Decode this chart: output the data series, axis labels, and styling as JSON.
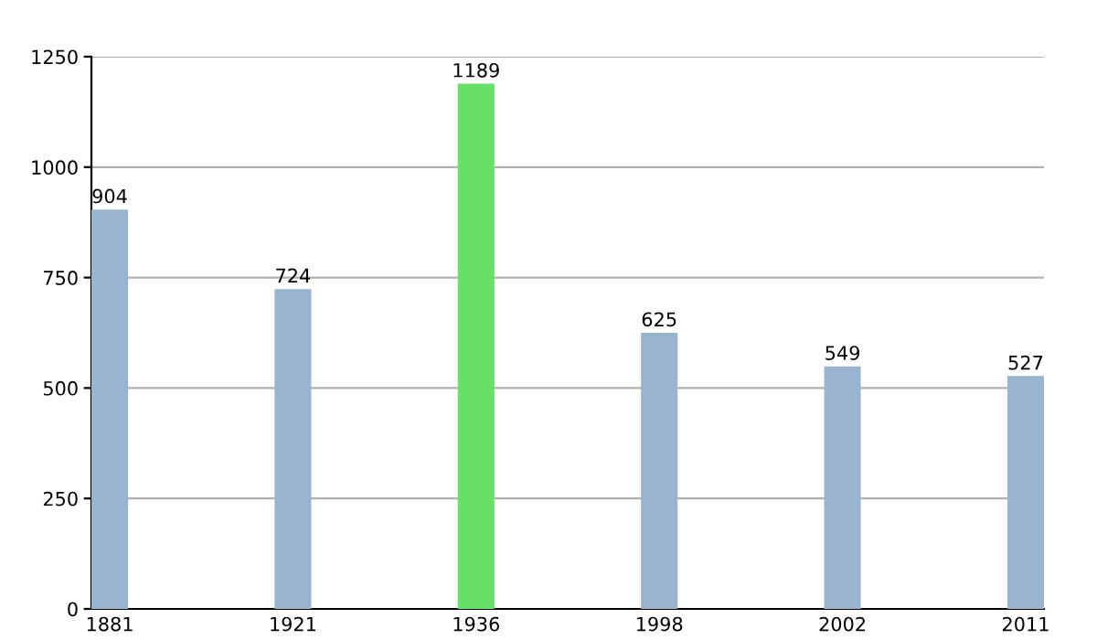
{
  "chart_data": {
    "type": "bar",
    "categories": [
      "1881",
      "1921",
      "1936",
      "1998",
      "2002",
      "2011"
    ],
    "values": [
      904,
      724,
      1189,
      625,
      549,
      527
    ],
    "colors": [
      "#98b4cf",
      "#98b4cf",
      "#66e066",
      "#98b4cf",
      "#98b4cf",
      "#98b4cf"
    ],
    "ylim": [
      0,
      1250
    ],
    "yticks": [
      0,
      250,
      500,
      750,
      1000,
      1250
    ],
    "grid": "y",
    "data_labels": true
  }
}
